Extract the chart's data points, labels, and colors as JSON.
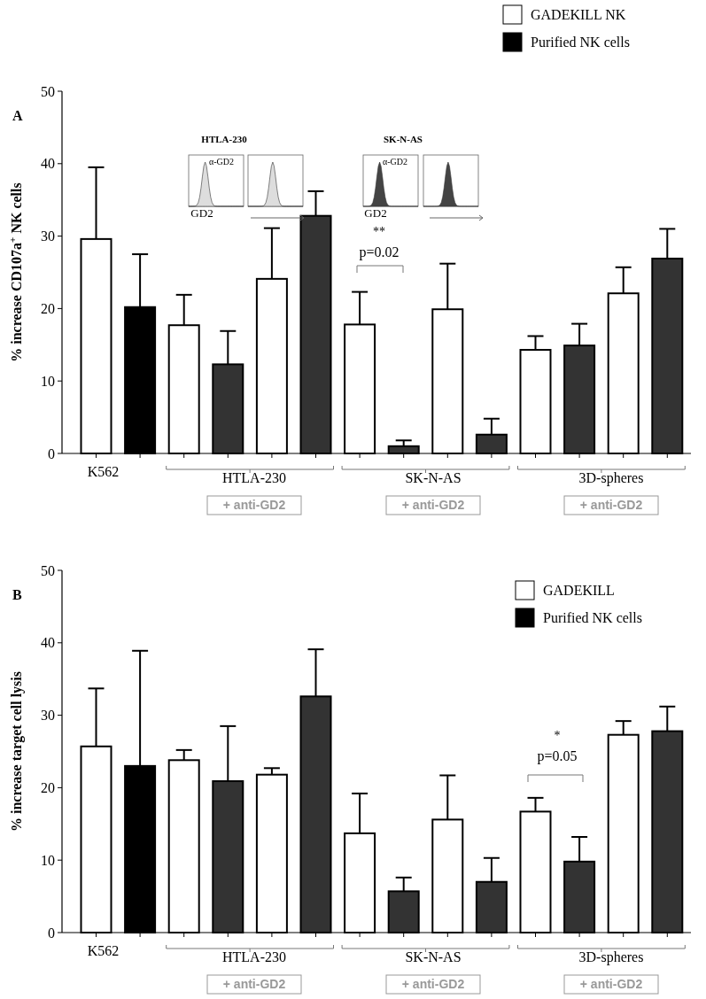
{
  "chart_data": [
    {
      "type": "bar",
      "ylabel": "% increase CD107a$^{+}$ NK cells",
      "categories": [
        "K562",
        null,
        null,
        null,
        null,
        null,
        null,
        null,
        null,
        null,
        null,
        null,
        null,
        null
      ],
      "ylim": [
        0,
        50
      ],
      "yticks": [
        0,
        10,
        20,
        30,
        40,
        50
      ],
      "grid": false,
      "legend": "top right",
      "series": [
        {
          "name": "GADEKILL NK",
          "color": "#ffffff",
          "values": [
            29.6,
            null,
            17.7,
            null,
            24.1,
            null,
            17.8,
            null,
            19.9,
            null,
            14.3,
            null,
            22.1,
            null
          ],
          "errors": [
            [
              29.6,
              39.5
            ],
            null,
            [
              17.7,
              21.9
            ],
            null,
            [
              24.1,
              31.1
            ],
            null,
            [
              17.8,
              22.3
            ],
            null,
            [
              19.9,
              26.2
            ],
            null,
            [
              14.3,
              16.2
            ],
            null,
            [
              22.1,
              25.7
            ],
            null
          ]
        },
        {
          "name": "Purified NK cells",
          "color": "#000000",
          "colors": [
            null,
            "#000000",
            null,
            "#333333",
            null,
            "#333333",
            null,
            "#333333",
            null,
            "#333333",
            null,
            "#333333",
            null,
            "#333333"
          ],
          "values": [
            null,
            20.2,
            null,
            12.3,
            null,
            32.8,
            null,
            1.0,
            null,
            2.6,
            null,
            14.9,
            null,
            26.9
          ],
          "errors": [
            null,
            [
              20.2,
              27.5
            ],
            null,
            [
              12.3,
              16.9
            ],
            null,
            [
              32.8,
              36.2
            ],
            null,
            [
              1.0,
              1.8
            ],
            null,
            [
              2.6,
              4.8
            ],
            null,
            [
              14.9,
              17.9
            ],
            null,
            [
              26.9,
              31.0
            ]
          ]
        }
      ],
      "annotations": [
        "A",
        "HTLA-230",
        "SK-N-AS",
        "3D-spheres",
        "+ anti-GD2",
        "+ anti-GD2",
        "+ anti-GD2",
        "**",
        "p=0.02",
        "HTLA-230",
        "α-GD2",
        "GD2",
        "SK-N-AS",
        "α-GD2",
        "GD2"
      ]
    },
    {
      "type": "bar",
      "ylabel": "% increase target cell lysis",
      "categories": [
        "K562",
        null,
        null,
        null,
        null,
        null,
        null,
        null,
        null,
        null,
        null,
        null,
        null,
        null
      ],
      "ylim": [
        0,
        50
      ],
      "yticks": [
        0,
        10,
        20,
        30,
        40,
        50
      ],
      "grid": false,
      "legend": "top right",
      "series": [
        {
          "name": "GADEKILL",
          "color": "#ffffff",
          "values": [
            25.7,
            null,
            23.8,
            null,
            21.8,
            null,
            13.7,
            null,
            15.6,
            null,
            16.7,
            null,
            27.3,
            null
          ],
          "errors": [
            [
              25.7,
              33.7
            ],
            null,
            [
              23.8,
              25.2
            ],
            null,
            [
              21.8,
              22.7
            ],
            null,
            [
              13.7,
              19.2
            ],
            null,
            [
              15.6,
              21.7
            ],
            null,
            [
              16.7,
              18.6
            ],
            null,
            [
              27.3,
              29.2
            ],
            null
          ]
        },
        {
          "name": "Purified NK cells",
          "color": "#000000",
          "colors": [
            null,
            "#000000",
            null,
            "#333333",
            null,
            "#333333",
            null,
            "#333333",
            null,
            "#333333",
            null,
            "#333333",
            null,
            "#333333"
          ],
          "values": [
            null,
            23.0,
            null,
            20.9,
            null,
            32.6,
            null,
            5.7,
            null,
            7.0,
            null,
            9.8,
            null,
            27.8
          ],
          "errors": [
            null,
            [
              23.0,
              38.9
            ],
            null,
            [
              20.9,
              28.5
            ],
            null,
            [
              32.6,
              39.1
            ],
            null,
            [
              5.7,
              7.6
            ],
            null,
            [
              7.0,
              10.3
            ],
            null,
            [
              9.8,
              13.2
            ],
            null,
            [
              27.8,
              31.2
            ]
          ]
        }
      ],
      "annotations": [
        "B",
        "HTLA-230",
        "SK-N-AS",
        "3D-spheres",
        "+ anti-GD2",
        "+ anti-GD2",
        "+ anti-GD2",
        "*",
        "p=0.05"
      ]
    }
  ]
}
